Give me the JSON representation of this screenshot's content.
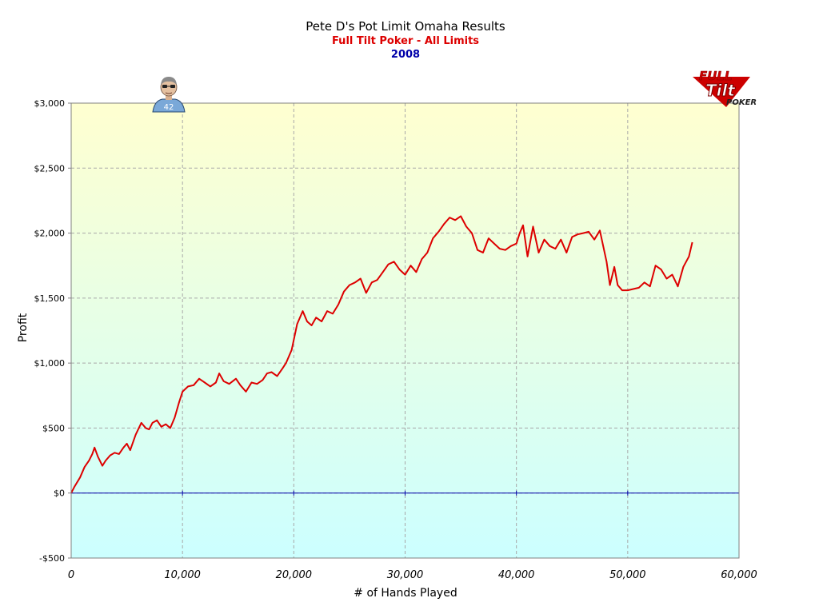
{
  "chart_data": {
    "type": "line",
    "title": "Pete D's Pot Limit Omaha Results",
    "subtitle": "Full Tilt Poker - All Limits",
    "subtitle2": "2008",
    "xlabel": "# of Hands Played",
    "ylabel": "Profit",
    "xlim": [
      0,
      60000
    ],
    "ylim": [
      -500,
      3000
    ],
    "xticks": [
      0,
      10000,
      20000,
      30000,
      40000,
      50000,
      60000
    ],
    "xtick_labels": [
      "0",
      "10,000",
      "20,000",
      "30,000",
      "40,000",
      "50,000",
      "60,000"
    ],
    "yticks": [
      -500,
      0,
      500,
      1000,
      1500,
      2000,
      2500,
      3000
    ],
    "ytick_labels": [
      "-$500",
      "$0",
      "$500",
      "$1,000",
      "$1,500",
      "$2,000",
      "$2,500",
      "$3,000"
    ],
    "grid": true,
    "colors": {
      "line": "#dd0000",
      "zero_line": "#0000aa",
      "subtitle": "#dd0000",
      "subtitle2": "#0000aa",
      "bg_top": "#ffffd0",
      "bg_bottom": "#ccffff"
    },
    "series": [
      {
        "x": [
          0,
          300,
          800,
          1200,
          1600,
          1900,
          2100,
          2400,
          2800,
          3100,
          3500,
          3900,
          4300,
          4700,
          5000,
          5300,
          5800,
          6300,
          6700,
          7000,
          7300,
          7700,
          8100,
          8500,
          8900,
          9300,
          9700,
          10000,
          10500,
          11000,
          11500,
          12000,
          12500,
          13000,
          13300,
          13700,
          14200,
          14800,
          15200,
          15700,
          16200,
          16700,
          17200,
          17600,
          18000,
          18500,
          19000,
          19300,
          19800,
          20300,
          20800,
          21200,
          21600,
          22000,
          22500,
          23000,
          23500,
          24000,
          24500,
          25000,
          25500,
          26000,
          26500,
          27000,
          27500,
          28000,
          28500,
          29000,
          29500,
          30000,
          30500,
          31000,
          31500,
          32000,
          32500,
          33000,
          33500,
          34000,
          34500,
          35000,
          35500,
          36000,
          36500,
          37000,
          37500,
          38000,
          38500,
          39000,
          39500,
          40000,
          40300,
          40600,
          41000,
          41500,
          42000,
          42500,
          43000,
          43500,
          44000,
          44500,
          45000,
          45500,
          46000,
          46500,
          47000,
          47500,
          47800,
          48100,
          48400,
          48800,
          49100,
          49500,
          50000,
          50500,
          51000,
          51500,
          52000,
          52500,
          53000,
          53500,
          54000,
          54500,
          55000,
          55500,
          55800
        ],
        "y": [
          0,
          50,
          120,
          200,
          250,
          300,
          350,
          280,
          210,
          250,
          290,
          310,
          300,
          350,
          380,
          330,
          450,
          540,
          500,
          490,
          540,
          560,
          510,
          530,
          500,
          580,
          700,
          780,
          820,
          830,
          880,
          850,
          820,
          850,
          920,
          860,
          840,
          880,
          830,
          780,
          850,
          840,
          870,
          920,
          930,
          900,
          960,
          1000,
          1100,
          1300,
          1400,
          1320,
          1290,
          1350,
          1320,
          1400,
          1380,
          1450,
          1550,
          1600,
          1620,
          1650,
          1540,
          1620,
          1640,
          1700,
          1760,
          1780,
          1720,
          1680,
          1750,
          1700,
          1800,
          1850,
          1960,
          2010,
          2070,
          2120,
          2100,
          2130,
          2050,
          2000,
          1870,
          1850,
          1960,
          1920,
          1880,
          1870,
          1900,
          1920,
          2000,
          2060,
          1820,
          2050,
          1850,
          1950,
          1900,
          1880,
          1950,
          1850,
          1970,
          1990,
          2000,
          2010,
          1950,
          2020,
          1900,
          1780,
          1600,
          1740,
          1600,
          1560,
          1560,
          1570,
          1580,
          1620,
          1590,
          1750,
          1720,
          1650,
          1680,
          1590,
          1740,
          1820,
          1930
        ]
      }
    ]
  }
}
